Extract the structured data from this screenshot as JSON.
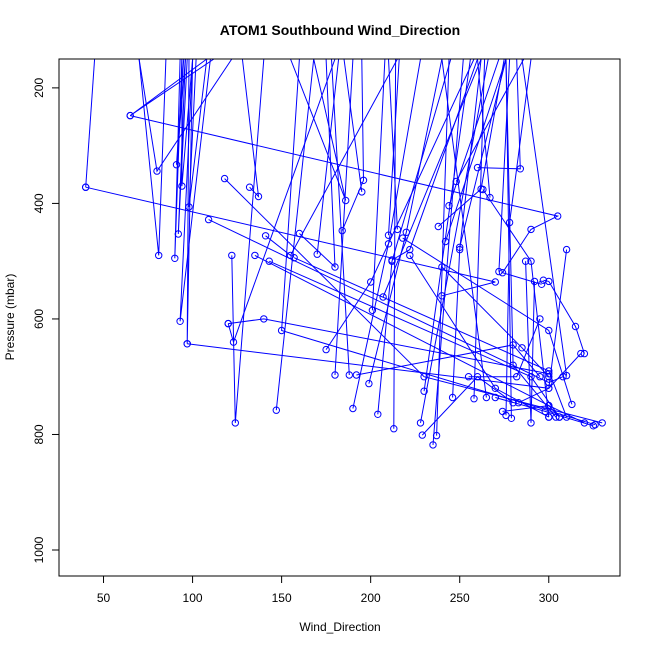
{
  "chart_data": {
    "type": "line",
    "title": "ATOM1 Southbound Wind_Direction",
    "xlabel": "Wind_Direction",
    "ylabel": "Pressure (mbar)",
    "xlim": [
      25,
      340
    ],
    "ylim": [
      1045,
      150
    ],
    "y_reversed": true,
    "grid": false,
    "color": "#0000ff",
    "x_ticks": [
      50,
      100,
      150,
      200,
      250,
      300
    ],
    "y_ticks": [
      200,
      400,
      600,
      800,
      1000
    ],
    "series": [
      {
        "x": [
          45,
          40
        ],
        "y": [
          150,
          372
        ]
      },
      {
        "x": [
          108,
          65,
          112
        ],
        "y": [
          150,
          248,
          150
        ]
      },
      {
        "x": [
          65,
          305,
          290,
          274,
          296
        ],
        "y": [
          248,
          422,
          445,
          520,
          540
        ]
      },
      {
        "x": [
          40,
          270,
          240
        ],
        "y": [
          372,
          536,
          560
        ]
      },
      {
        "x": [
          70,
          80,
          122,
          140
        ],
        "y": [
          150,
          344,
          150,
          150
        ]
      },
      {
        "x": [
          85,
          81,
          70
        ],
        "y": [
          150,
          490,
          150
        ]
      },
      {
        "x": [
          95,
          91,
          96
        ],
        "y": [
          150,
          333,
          150
        ]
      },
      {
        "x": [
          97,
          92,
          96
        ],
        "y": [
          150,
          453,
          150
        ]
      },
      {
        "x": [
          93,
          90,
          94
        ],
        "y": [
          150,
          495,
          150
        ]
      },
      {
        "x": [
          110,
          93,
          100
        ],
        "y": [
          150,
          604,
          150
        ]
      },
      {
        "x": [
          94,
          94,
          100
        ],
        "y": [
          150,
          370,
          150
        ]
      },
      {
        "x": [
          102,
          98,
          108
        ],
        "y": [
          150,
          406,
          150
        ]
      },
      {
        "x": [
          98,
          97,
          100,
          210
        ],
        "y": [
          150,
          643,
          150,
          150
        ]
      },
      {
        "x": [
          97,
          300,
          318
        ],
        "y": [
          643,
          720,
          660
        ]
      },
      {
        "x": [
          109,
          300,
          308
        ],
        "y": [
          428,
          710,
          700
        ]
      },
      {
        "x": [
          118,
          230,
          330
        ],
        "y": [
          357,
          700,
          780
        ]
      },
      {
        "x": [
          120,
          123,
          180
        ],
        "y": [
          608,
          640,
          150
        ]
      },
      {
        "x": [
          122,
          124,
          140
        ],
        "y": [
          490,
          780,
          150
        ]
      },
      {
        "x": [
          132,
          137,
          128,
          290
        ],
        "y": [
          372,
          388,
          150,
          150
        ]
      },
      {
        "x": [
          135,
          300,
          320
        ],
        "y": [
          490,
          750,
          780
        ]
      },
      {
        "x": [
          141,
          155,
          215
        ],
        "y": [
          456,
          490,
          150
        ]
      },
      {
        "x": [
          143,
          290,
          306
        ],
        "y": [
          500,
          700,
          770
        ]
      },
      {
        "x": [
          147,
          168,
          186,
          155
        ],
        "y": [
          758,
          150,
          395,
          150
        ]
      },
      {
        "x": [
          157,
          300,
          310
        ],
        "y": [
          494,
          690,
          770
        ]
      },
      {
        "x": [
          160,
          180,
          175
        ],
        "y": [
          452,
          510,
          150
        ]
      },
      {
        "x": [
          170,
          182,
          195
        ],
        "y": [
          488,
          150,
          150
        ]
      },
      {
        "x": [
          175,
          200,
          258
        ],
        "y": [
          653,
          536,
          150
        ]
      },
      {
        "x": [
          180,
          190,
          190,
          230
        ],
        "y": [
          697,
          150,
          150,
          150
        ]
      },
      {
        "x": [
          184,
          196,
          195
        ],
        "y": [
          447,
          360,
          150
        ]
      },
      {
        "x": [
          188,
          178,
          215
        ],
        "y": [
          697,
          150,
          150
        ]
      },
      {
        "x": [
          190,
          210,
          228
        ],
        "y": [
          755,
          470,
          150
        ]
      },
      {
        "x": [
          192,
          280,
          295
        ],
        "y": [
          697,
          645,
          700
        ]
      },
      {
        "x": [
          195,
          185,
          200
        ],
        "y": [
          380,
          150,
          150
        ]
      },
      {
        "x": [
          199,
          220,
          240
        ],
        "y": [
          712,
          450,
          150
        ]
      },
      {
        "x": [
          201,
          208,
          230
        ],
        "y": [
          585,
          150,
          150
        ]
      },
      {
        "x": [
          204,
          212,
          245
        ],
        "y": [
          765,
          500,
          150
        ]
      },
      {
        "x": [
          207,
          262,
          280
        ],
        "y": [
          562,
          150,
          150
        ]
      },
      {
        "x": [
          210,
          216,
          210
        ],
        "y": [
          455,
          150,
          150
        ]
      },
      {
        "x": [
          212,
          222,
          260
        ],
        "y": [
          498,
          480,
          150
        ]
      },
      {
        "x": [
          213,
          214,
          216
        ],
        "y": [
          790,
          150,
          150
        ]
      },
      {
        "x": [
          215,
          210,
          220
        ],
        "y": [
          445,
          150,
          150
        ]
      },
      {
        "x": [
          218,
          300,
          313
        ],
        "y": [
          460,
          620,
          748
        ]
      },
      {
        "x": [
          222,
          270,
          300
        ],
        "y": [
          490,
          720,
          770
        ]
      },
      {
        "x": [
          228,
          266,
          281
        ],
        "y": [
          780,
          150,
          150
        ]
      },
      {
        "x": [
          229,
          260,
          280
        ],
        "y": [
          801,
          700,
          745
        ]
      },
      {
        "x": [
          230,
          256,
          268
        ],
        "y": [
          725,
          150,
          150
        ]
      },
      {
        "x": [
          235,
          252,
          276
        ],
        "y": [
          818,
          150,
          150
        ]
      },
      {
        "x": [
          237,
          244,
          270
        ],
        "y": [
          802,
          150,
          150
        ]
      },
      {
        "x": [
          238,
          262,
          275,
          310
        ],
        "y": [
          440,
          375,
          150,
          150
        ]
      },
      {
        "x": [
          240,
          285,
          300
        ],
        "y": [
          510,
          650,
          700
        ]
      },
      {
        "x": [
          242,
          276,
          295,
          300
        ],
        "y": [
          466,
          150,
          150,
          150
        ]
      },
      {
        "x": [
          244,
          272,
          276
        ],
        "y": [
          404,
          150,
          150
        ]
      },
      {
        "x": [
          246,
          250,
          262
        ],
        "y": [
          736,
          480,
          150
        ]
      },
      {
        "x": [
          248,
          286,
          282
        ],
        "y": [
          362,
          150,
          150
        ]
      },
      {
        "x": [
          250,
          276,
          275
        ],
        "y": [
          476,
          150,
          150
        ]
      },
      {
        "x": [
          255,
          282,
          295
        ],
        "y": [
          700,
          700,
          600
        ]
      },
      {
        "x": [
          258,
          264,
          283
        ],
        "y": [
          738,
          150,
          150
        ]
      },
      {
        "x": [
          260,
          284,
          282
        ],
        "y": [
          338,
          340,
          150
        ]
      },
      {
        "x": [
          263,
          290,
          300
        ],
        "y": [
          376,
          500,
          770
        ]
      },
      {
        "x": [
          265,
          240,
          255
        ],
        "y": [
          736,
          150,
          150
        ]
      },
      {
        "x": [
          267,
          260,
          270
        ],
        "y": [
          390,
          150,
          150
        ]
      },
      {
        "x": [
          270,
          298,
          325
        ],
        "y": [
          736,
          760,
          785
        ]
      },
      {
        "x": [
          272,
          278,
          265
        ],
        "y": [
          518,
          150,
          150
        ]
      },
      {
        "x": [
          274,
          300,
          306
        ],
        "y": [
          760,
          750,
          770
        ]
      },
      {
        "x": [
          276,
          278,
          290
        ],
        "y": [
          767,
          433,
          150
        ]
      },
      {
        "x": [
          279,
          276,
          290
        ],
        "y": [
          772,
          150,
          150
        ]
      },
      {
        "x": [
          283,
          300,
          310
        ],
        "y": [
          745,
          720,
          480
        ]
      },
      {
        "x": [
          287,
          290,
          292
        ],
        "y": [
          500,
          780,
          535
        ]
      },
      {
        "x": [
          297,
          300,
          315,
          320
        ],
        "y": [
          533,
          535,
          613,
          660
        ]
      },
      {
        "x": [
          300,
          140,
          120
        ],
        "y": [
          695,
          600,
          608
        ]
      },
      {
        "x": [
          304,
          280,
          276
        ],
        "y": [
          770,
          680,
          150
        ]
      },
      {
        "x": [
          310,
          285,
          270
        ],
        "y": [
          698,
          150,
          150
        ]
      },
      {
        "x": [
          326,
          150,
          160
        ],
        "y": [
          783,
          620,
          150
        ]
      }
    ]
  }
}
